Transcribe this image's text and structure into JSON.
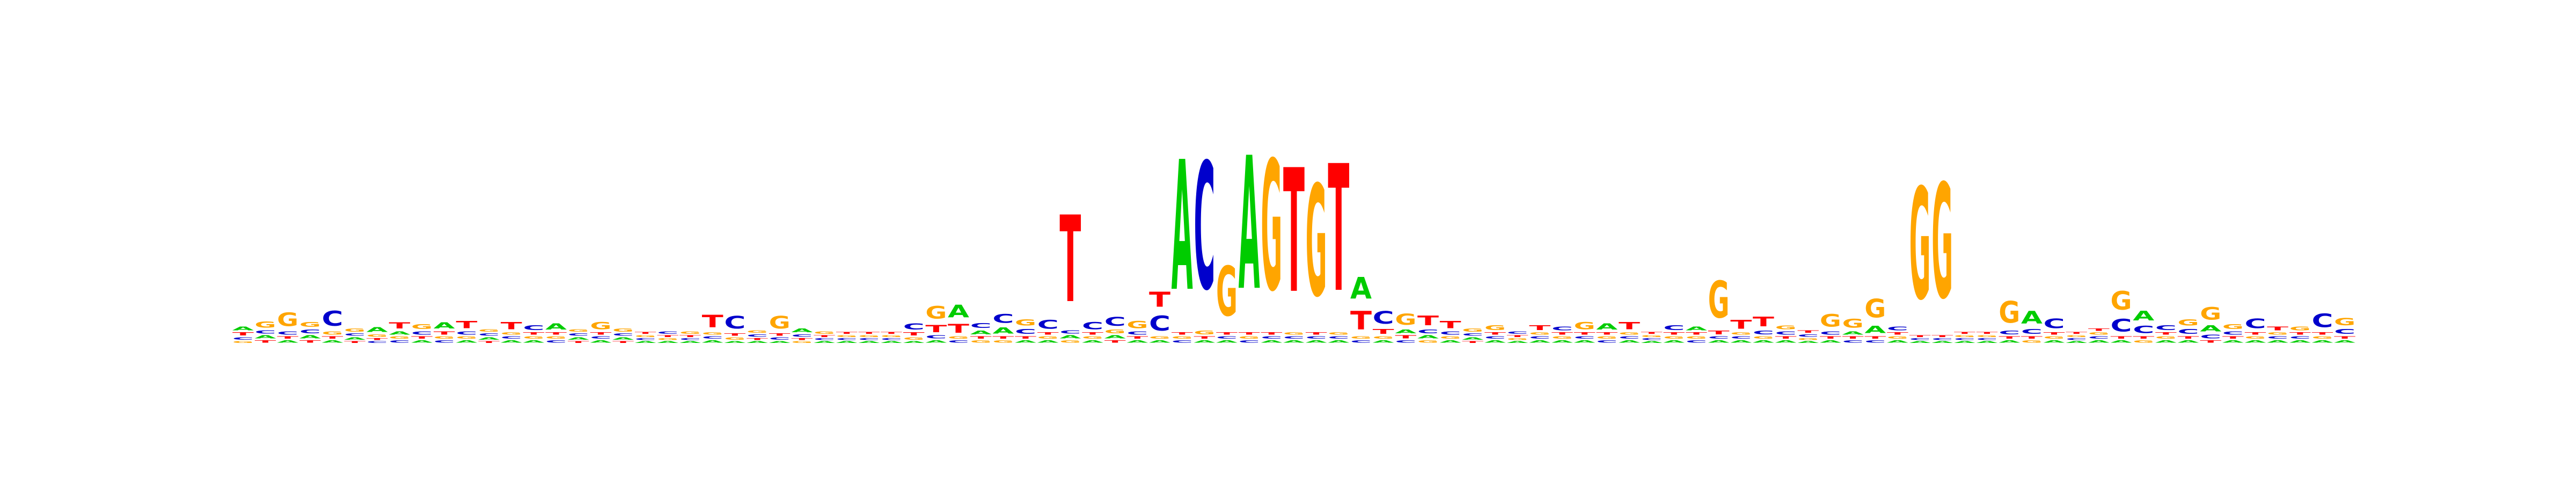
{
  "chart_data": {
    "type": "sequence-logo",
    "alphabet": [
      "A",
      "C",
      "G",
      "T"
    ],
    "colors": {
      "A": "#00cc00",
      "C": "#0000cc",
      "G": "#ffa500",
      "T": "#ff0000"
    },
    "ylim": [
      0,
      2
    ],
    "positions": [
      {
        "A": 0.06,
        "C": 0.04,
        "G": 0.03,
        "T": 0.05
      },
      {
        "A": 0.05,
        "C": 0.05,
        "G": 0.1,
        "T": 0.04
      },
      {
        "A": 0.04,
        "C": 0.05,
        "G": 0.22,
        "T": 0.04
      },
      {
        "A": 0.05,
        "C": 0.06,
        "G": 0.08,
        "T": 0.04
      },
      {
        "A": 0.04,
        "C": 0.24,
        "G": 0.05,
        "T": 0.04
      },
      {
        "A": 0.04,
        "C": 0.04,
        "G": 0.05,
        "T": 0.03
      },
      {
        "A": 0.08,
        "C": 0.03,
        "G": 0.04,
        "T": 0.03
      },
      {
        "A": 0.05,
        "C": 0.04,
        "G": 0.04,
        "T": 0.1
      },
      {
        "A": 0.04,
        "C": 0.05,
        "G": 0.08,
        "T": 0.04
      },
      {
        "A": 0.1,
        "C": 0.04,
        "G": 0.04,
        "T": 0.05
      },
      {
        "A": 0.04,
        "C": 0.05,
        "G": 0.04,
        "T": 0.12
      },
      {
        "A": 0.04,
        "C": 0.04,
        "G": 0.04,
        "T": 0.03
      },
      {
        "A": 0.04,
        "C": 0.04,
        "G": 0.04,
        "T": 0.12
      },
      {
        "A": 0.04,
        "C": 0.08,
        "G": 0.04,
        "T": 0.04
      },
      {
        "A": 0.1,
        "C": 0.04,
        "G": 0.04,
        "T": 0.04
      },
      {
        "A": 0.04,
        "C": 0.04,
        "G": 0.04,
        "T": 0.03
      },
      {
        "A": 0.04,
        "C": 0.04,
        "G": 0.12,
        "T": 0.04
      },
      {
        "A": 0.04,
        "C": 0.04,
        "G": 0.05,
        "T": 0.03
      },
      {
        "A": 0.03,
        "C": 0.03,
        "G": 0.03,
        "T": 0.03
      },
      {
        "A": 0.03,
        "C": 0.04,
        "G": 0.03,
        "T": 0.03
      },
      {
        "A": 0.03,
        "C": 0.03,
        "G": 0.04,
        "T": 0.03
      },
      {
        "A": 0.04,
        "C": 0.04,
        "G": 0.04,
        "T": 0.2
      },
      {
        "A": 0.03,
        "C": 0.2,
        "G": 0.04,
        "T": 0.04
      },
      {
        "A": 0.03,
        "C": 0.04,
        "G": 0.04,
        "T": 0.03
      },
      {
        "A": 0.03,
        "C": 0.04,
        "G": 0.2,
        "T": 0.04
      },
      {
        "A": 0.06,
        "C": 0.04,
        "G": 0.03,
        "T": 0.03
      },
      {
        "A": 0.03,
        "C": 0.03,
        "G": 0.04,
        "T": 0.03
      },
      {
        "A": 0.03,
        "C": 0.03,
        "G": 0.03,
        "T": 0.03
      },
      {
        "A": 0.03,
        "C": 0.03,
        "G": 0.03,
        "T": 0.03
      },
      {
        "A": 0.03,
        "C": 0.03,
        "G": 0.03,
        "T": 0.03
      },
      {
        "A": 0.03,
        "C": 0.1,
        "G": 0.04,
        "T": 0.05
      },
      {
        "A": 0.04,
        "C": 0.05,
        "G": 0.2,
        "T": 0.12
      },
      {
        "A": 0.2,
        "C": 0.04,
        "G": 0.04,
        "T": 0.14
      },
      {
        "A": 0.06,
        "C": 0.08,
        "G": 0.04,
        "T": 0.04
      },
      {
        "A": 0.1,
        "C": 0.14,
        "G": 0.04,
        "T": 0.04
      },
      {
        "A": 0.04,
        "C": 0.08,
        "G": 0.1,
        "T": 0.04
      },
      {
        "A": 0.04,
        "C": 0.14,
        "G": 0.04,
        "T": 0.04
      },
      {
        "A": 0.05,
        "C": 0.05,
        "G": 0.04,
        "T": 1.4
      },
      {
        "A": 0.04,
        "C": 0.12,
        "G": 0.04,
        "T": 0.04
      },
      {
        "A": 0.05,
        "C": 0.14,
        "G": 0.06,
        "T": 0.04
      },
      {
        "A": 0.04,
        "C": 0.05,
        "G": 0.12,
        "T": 0.04
      },
      {
        "A": 0.04,
        "C": 0.24,
        "G": 0.04,
        "T": 0.24
      },
      {
        "A": 2.1,
        "C": 0.04,
        "G": 0.04,
        "T": 0.04
      },
      {
        "A": 0.04,
        "C": 2.05,
        "G": 0.06,
        "T": 0.04
      },
      {
        "A": 0.04,
        "C": 0.04,
        "G": 0.8,
        "T": 0.04
      },
      {
        "A": 2.15,
        "C": 0.04,
        "G": 0.04,
        "T": 0.04
      },
      {
        "A": 0.04,
        "C": 0.04,
        "G": 2.1,
        "T": 0.04
      },
      {
        "A": 0.04,
        "C": 0.04,
        "G": 0.04,
        "T": 2.0
      },
      {
        "A": 0.04,
        "C": 0.04,
        "G": 1.8,
        "T": 0.04
      },
      {
        "A": 0.04,
        "C": 0.04,
        "G": 0.04,
        "T": 2.05
      },
      {
        "A": 0.35,
        "C": 0.04,
        "G": 0.04,
        "T": 0.3
      },
      {
        "A": 0.04,
        "C": 0.2,
        "G": 0.04,
        "T": 0.08
      },
      {
        "A": 0.06,
        "C": 0.04,
        "G": 0.18,
        "T": 0.05
      },
      {
        "A": 0.05,
        "C": 0.06,
        "G": 0.04,
        "T": 0.16
      },
      {
        "A": 0.04,
        "C": 0.05,
        "G": 0.04,
        "T": 0.12
      },
      {
        "A": 0.04,
        "C": 0.04,
        "G": 0.05,
        "T": 0.03
      },
      {
        "A": 0.04,
        "C": 0.04,
        "G": 0.08,
        "T": 0.04
      },
      {
        "A": 0.03,
        "C": 0.04,
        "G": 0.03,
        "T": 0.03
      },
      {
        "A": 0.04,
        "C": 0.04,
        "G": 0.04,
        "T": 0.08
      },
      {
        "A": 0.04,
        "C": 0.06,
        "G": 0.04,
        "T": 0.04
      },
      {
        "A": 0.04,
        "C": 0.04,
        "G": 0.12,
        "T": 0.04
      },
      {
        "A": 0.1,
        "C": 0.04,
        "G": 0.04,
        "T": 0.04
      },
      {
        "A": 0.04,
        "C": 0.04,
        "G": 0.04,
        "T": 0.12
      },
      {
        "A": 0.03,
        "C": 0.03,
        "G": 0.03,
        "T": 0.03
      },
      {
        "A": 0.04,
        "C": 0.08,
        "G": 0.04,
        "T": 0.04
      },
      {
        "A": 0.06,
        "C": 0.04,
        "G": 0.04,
        "T": 0.04
      },
      {
        "A": 0.04,
        "C": 0.04,
        "G": 0.6,
        "T": 0.06
      },
      {
        "A": 0.04,
        "C": 0.04,
        "G": 0.04,
        "T": 0.14
      },
      {
        "A": 0.04,
        "C": 0.06,
        "G": 0.04,
        "T": 0.16
      },
      {
        "A": 0.04,
        "C": 0.05,
        "G": 0.06,
        "T": 0.04
      },
      {
        "A": 0.03,
        "C": 0.04,
        "G": 0.03,
        "T": 0.04
      },
      {
        "A": 0.04,
        "C": 0.05,
        "G": 0.2,
        "T": 0.04
      },
      {
        "A": 0.05,
        "C": 0.04,
        "G": 0.14,
        "T": 0.04
      },
      {
        "A": 0.12,
        "C": 0.04,
        "G": 0.3,
        "T": 0.04
      },
      {
        "A": 0.04,
        "C": 0.06,
        "G": 0.04,
        "T": 0.04
      },
      {
        "A": 0.03,
        "C": 0.03,
        "G": 1.8,
        "T": 0.03
      },
      {
        "A": 0.03,
        "C": 0.03,
        "G": 1.85,
        "T": 0.03
      },
      {
        "A": 0.03,
        "C": 0.03,
        "G": 0.03,
        "T": 0.03
      },
      {
        "A": 0.03,
        "C": 0.03,
        "G": 0.03,
        "T": 0.03
      },
      {
        "A": 0.04,
        "C": 0.06,
        "G": 0.35,
        "T": 0.04
      },
      {
        "A": 0.2,
        "C": 0.08,
        "G": 0.04,
        "T": 0.04
      },
      {
        "A": 0.04,
        "C": 0.16,
        "G": 0.04,
        "T": 0.04
      },
      {
        "A": 0.03,
        "C": 0.03,
        "G": 0.03,
        "T": 0.03
      },
      {
        "A": 0.04,
        "C": 0.04,
        "G": 0.04,
        "T": 0.04
      },
      {
        "A": 0.04,
        "C": 0.2,
        "G": 0.3,
        "T": 0.04
      },
      {
        "A": 0.16,
        "C": 0.12,
        "G": 0.04,
        "T": 0.04
      },
      {
        "A": 0.04,
        "C": 0.08,
        "G": 0.04,
        "T": 0.04
      },
      {
        "A": 0.04,
        "C": 0.08,
        "G": 0.1,
        "T": 0.04
      },
      {
        "A": 0.1,
        "C": 0.06,
        "G": 0.2,
        "T": 0.04
      },
      {
        "A": 0.04,
        "C": 0.05,
        "G": 0.08,
        "T": 0.04
      },
      {
        "A": 0.04,
        "C": 0.16,
        "G": 0.04,
        "T": 0.04
      },
      {
        "A": 0.04,
        "C": 0.04,
        "G": 0.04,
        "T": 0.06
      },
      {
        "A": 0.04,
        "C": 0.04,
        "G": 0.06,
        "T": 0.04
      },
      {
        "A": 0.04,
        "C": 0.22,
        "G": 0.04,
        "T": 0.04
      },
      {
        "A": 0.04,
        "C": 0.08,
        "G": 0.12,
        "T": 0.04
      }
    ]
  }
}
